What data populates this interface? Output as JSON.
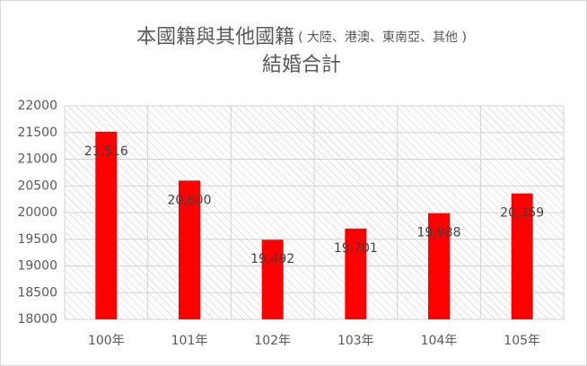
{
  "chart_data": {
    "type": "bar",
    "title": [
      "本國籍與其他國籍",
      "( 大陸、港澳、東南亞、其他 )",
      "結婚合計"
    ],
    "categories": [
      "100年",
      "101年",
      "102年",
      "103年",
      "104年",
      "105年"
    ],
    "values": [
      21516,
      20600,
      19492,
      19701,
      19988,
      20359
    ],
    "value_labels": [
      "21,516",
      "20,600",
      "19,492",
      "19,701",
      "19,988",
      "20,359"
    ],
    "color": "#ff0000",
    "ylim": [
      18000,
      22000
    ],
    "yticks": [
      18000,
      18500,
      19000,
      19500,
      20000,
      20500,
      21000,
      21500,
      22000
    ],
    "grid": true
  }
}
